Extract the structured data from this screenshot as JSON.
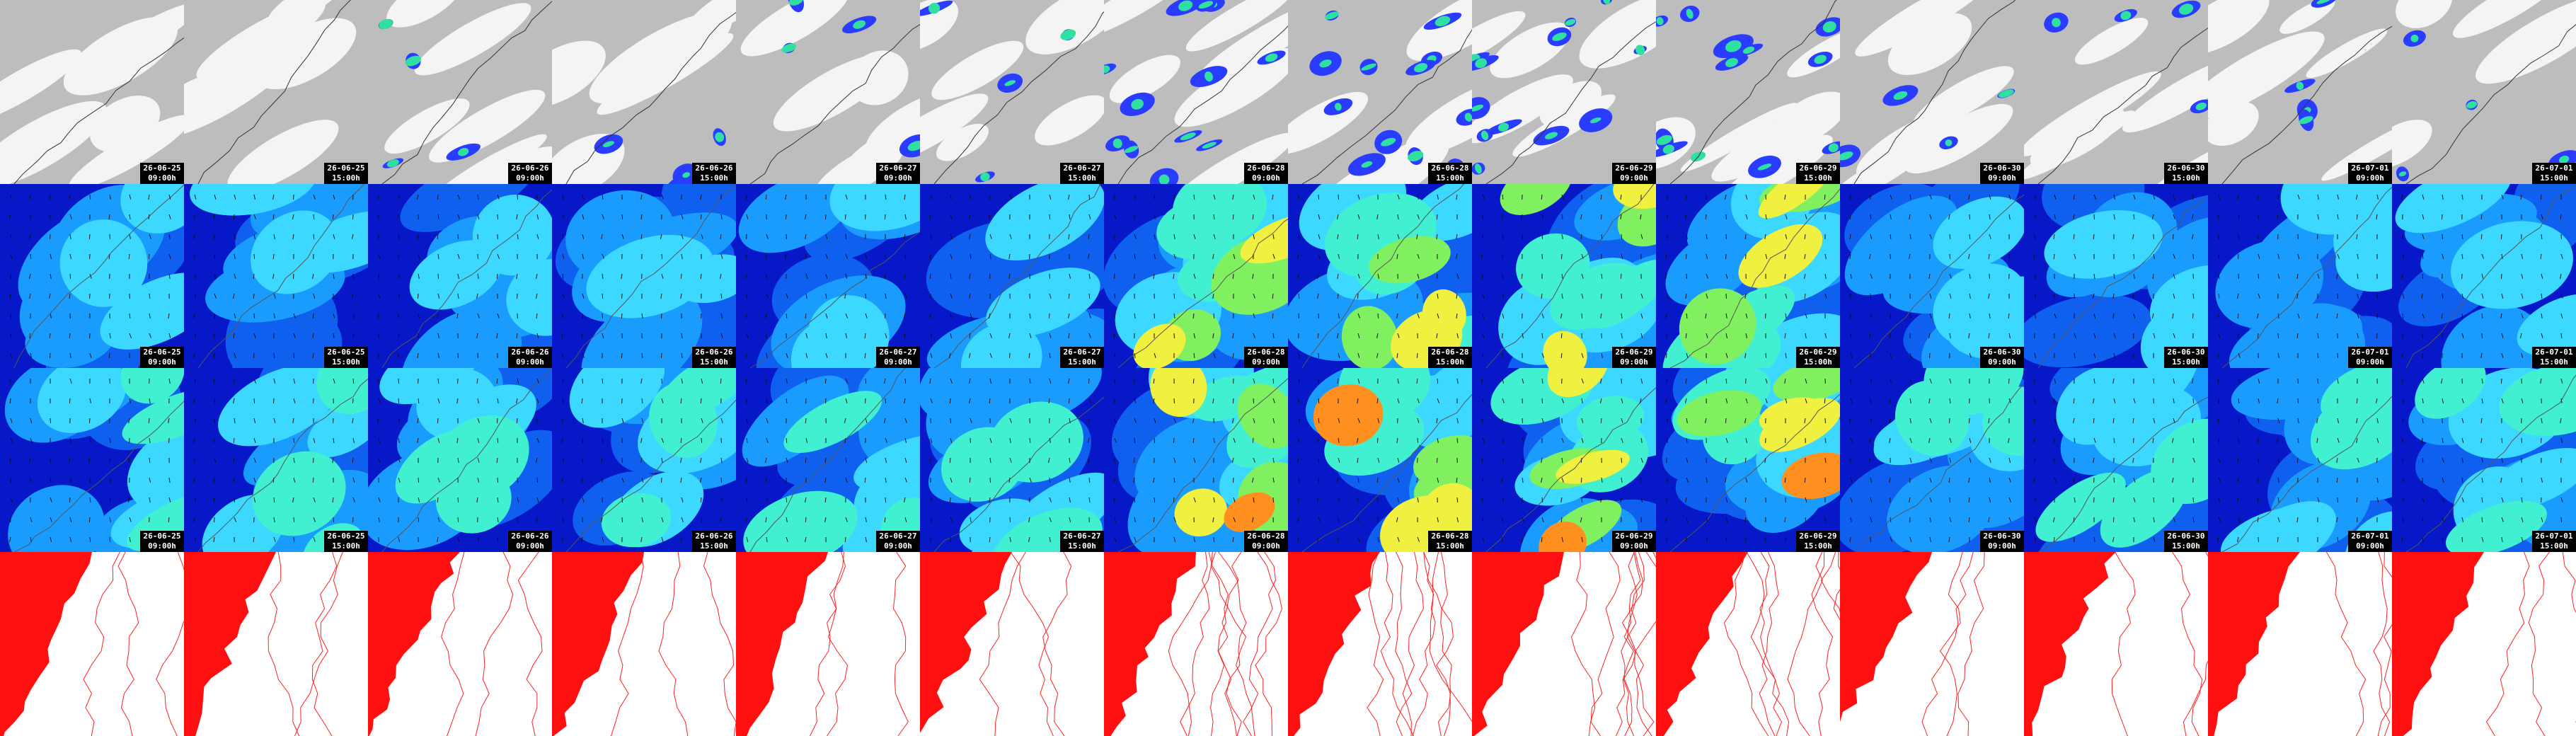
{
  "columns": [
    {
      "date": "26-06-25",
      "time": "09:00h"
    },
    {
      "date": "26-06-25",
      "time": "15:00h"
    },
    {
      "date": "26-06-26",
      "time": "09:00h"
    },
    {
      "date": "26-06-26",
      "time": "15:00h"
    },
    {
      "date": "26-06-27",
      "time": "09:00h"
    },
    {
      "date": "26-06-27",
      "time": "15:00h"
    },
    {
      "date": "26-06-28",
      "time": "09:00h"
    },
    {
      "date": "26-06-28",
      "time": "15:00h"
    },
    {
      "date": "26-06-29",
      "time": "09:00h"
    },
    {
      "date": "26-06-29",
      "time": "15:00h"
    },
    {
      "date": "26-06-30",
      "time": "09:00h"
    },
    {
      "date": "26-06-30",
      "time": "15:00h"
    },
    {
      "date": "26-07-01",
      "time": "09:00h"
    },
    {
      "date": "26-07-01",
      "time": "15:00h"
    }
  ]
}
